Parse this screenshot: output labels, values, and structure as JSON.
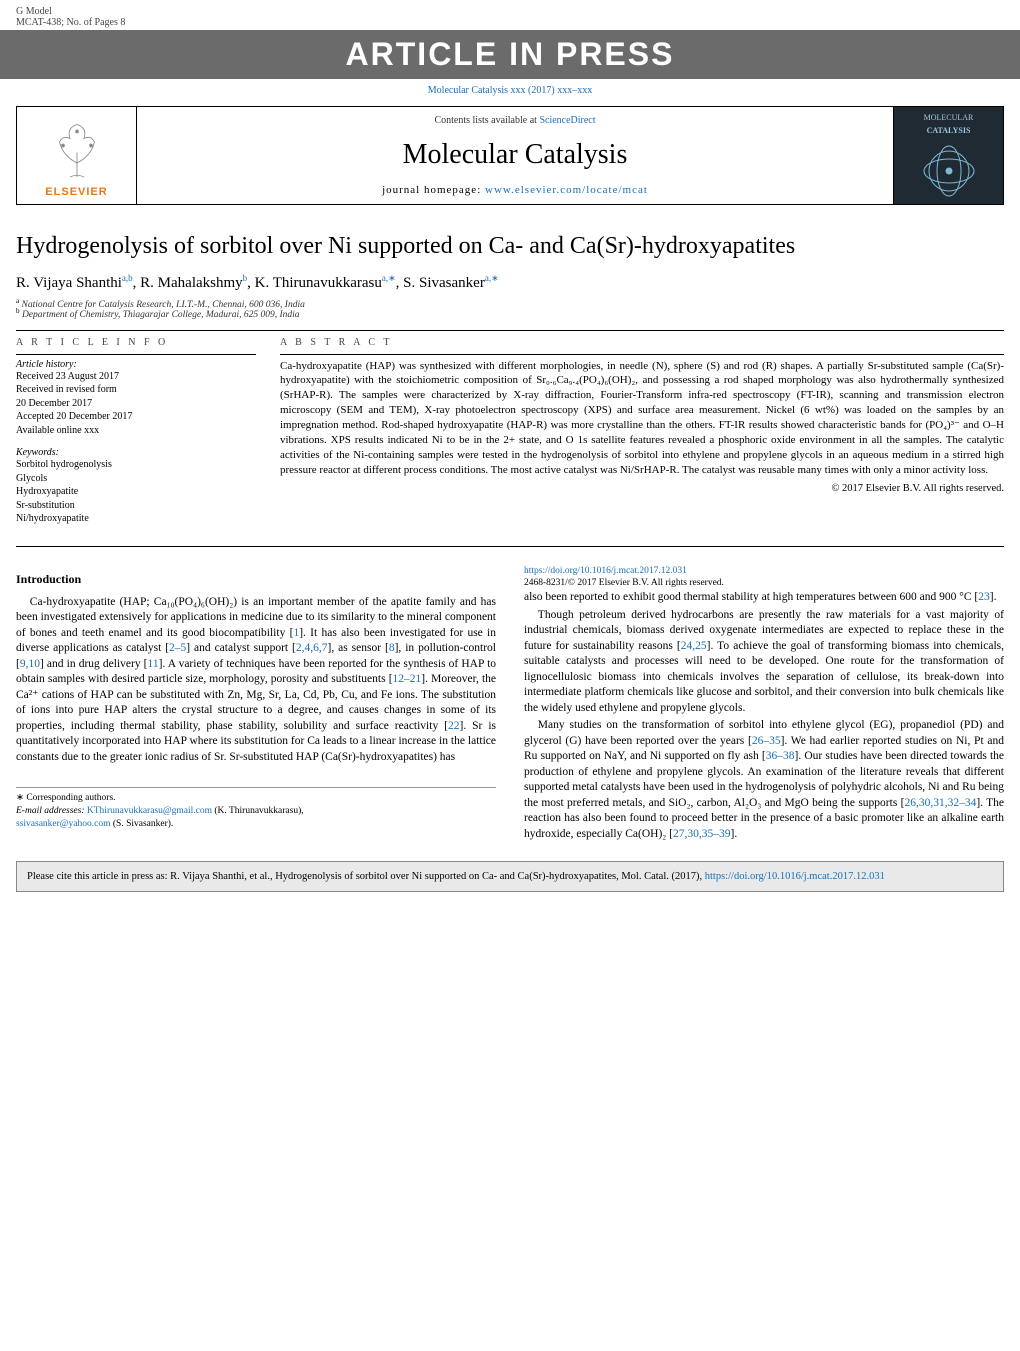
{
  "top": {
    "gmodel": "G Model",
    "mcat": "MCAT-438;   No. of Pages 8",
    "banner": "ARTICLE IN PRESS",
    "journal_ref_text": "Molecular Catalysis xxx (2017) xxx–xxx",
    "journal_ref_href": "#"
  },
  "header": {
    "elsevier_label": "ELSEVIER",
    "contents_prefix": "Contents lists available at ",
    "contents_link": "ScienceDirect",
    "journal_title": "Molecular Catalysis",
    "homepage_label": "journal homepage: ",
    "homepage_url": "www.elsevier.com/locate/mcat",
    "cover_text_top": "MOLECULAR",
    "cover_text_bottom": "CATALYSIS"
  },
  "article": {
    "title": "Hydrogenolysis of sorbitol over Ni supported on Ca- and Ca(Sr)-hydroxyapatites",
    "authors_html": "R. Vijaya Shanthi<sup>a,b</sup>, R. Mahalakshmy<sup>b</sup>, K. Thirunavukkarasu<sup>a,∗</sup>, S. Sivasanker<sup>a,∗</sup>",
    "affil_a": "National Centre for Catalysis Research, I.I.T.-M., Chennai, 600 036, India",
    "affil_b": "Department of Chemistry, Thiagarajar College, Madurai, 625 009, India"
  },
  "info": {
    "head": "A R T I C L E   I N F O",
    "history_label": "Article history:",
    "history_lines": [
      "Received 23 August 2017",
      "Received in revised form",
      "20 December 2017",
      "Accepted 20 December 2017",
      "Available online xxx"
    ],
    "keywords_label": "Keywords:",
    "keywords": [
      "Sorbitol hydrogenolysis",
      "Glycols",
      "Hydroxyapatite",
      "Sr-substitution",
      "Ni/hydroxyapatite"
    ]
  },
  "abstract": {
    "head": "A B S T R A C T",
    "text": "Ca-hydroxyapatite (HAP) was synthesized with different morphologies, in needle (N), sphere (S) and rod (R) shapes. A partially Sr-substituted sample (Ca(Sr)-hydroxyapatite) with the stoichiometric composition of Sr₀.₆Ca₉.₄(PO₄)₆(OH)₂, and possessing a rod shaped morphology was also hydrothermally synthesized (SrHAP-R). The samples were characterized by X-ray diffraction, Fourier-Transform infra-red spectroscopy (FT-IR), scanning and transmission electron microscopy (SEM and TEM), X-ray photoelectron spectroscopy (XPS) and surface area measurement. Nickel (6 wt%) was loaded on the samples by an impregnation method. Rod-shaped hydroxyapatite (HAP-R) was more crystalline than the others. FT-IR results showed characteristic bands for (PO₄)³⁻ and O–H vibrations. XPS results indicated Ni to be in the 2+ state, and O 1s satellite features revealed a phosphoric oxide environment in all the samples. The catalytic activities of the Ni-containing samples were tested in the hydrogenolysis of sorbitol into ethylene and propylene glycols in an aqueous medium in a stirred high pressure reactor at different process conditions. The most active catalyst was Ni/SrHAP-R. The catalyst was reusable many times with only a minor activity loss.",
    "copyright": "© 2017 Elsevier B.V. All rights reserved."
  },
  "body": {
    "heading": "Introduction",
    "p1": "Ca-hydroxyapatite (HAP; Ca₁₀(PO₄)₆(OH)₂) is an important member of the apatite family and has been investigated extensively for applications in medicine due to its similarity to the mineral component of bones and teeth enamel and its good biocompatibility [1]. It has also been investigated for use in diverse applications as catalyst [2–5] and catalyst support [2,4,6,7], as sensor [8], in pollution-control [9,10] and in drug delivery [11]. A variety of techniques have been reported for the synthesis of HAP to obtain samples with desired particle size, morphology, porosity and substituents [12–21]. Moreover, the Ca²⁺ cations of HAP can be substituted with Zn, Mg, Sr, La, Cd, Pb, Cu, and Fe ions. The substitution of ions into pure HAP alters the crystal structure to a degree, and causes changes in some of its properties, including thermal stability, phase stability, solubility and surface reactivity [22]. Sr is quantitatively incorporated into HAP where its substitution for Ca leads to a linear increase in the lattice constants due to the greater ionic radius of Sr. Sr-substituted HAP (Ca(Sr)-hydroxyapatites) has",
    "p2": "also been reported to exhibit good thermal stability at high temperatures between 600 and 900 °C [23].",
    "p3": "Though petroleum derived hydrocarbons are presently the raw materials for a vast majority of industrial chemicals, biomass derived oxygenate intermediates are expected to replace these in the future for sustainability reasons [24,25]. To achieve the goal of transforming biomass into chemicals, suitable catalysts and processes will need to be developed. One route for the transformation of lignocellulosic biomass into chemicals involves the separation of cellulose, its break-down into intermediate platform chemicals like glucose and sorbitol, and their conversion into bulk chemicals like the widely used ethylene and propylene glycols.",
    "p4": "Many studies on the transformation of sorbitol into ethylene glycol (EG), propanediol (PD) and glycerol (G) have been reported over the years [26–35]. We had earlier reported studies on Ni, Pt and Ru supported on NaY, and Ni supported on fly ash [36–38]. Our studies have been directed towards the production of ethylene and propylene glycols. An examination of the literature reveals that different supported metal catalysts have been used in the hydrogenolysis of polyhydric alcohols, Ni and Ru being the most preferred metals, and SiO₂, carbon, Al₂O₃ and MgO being the supports [26,30,31,32–34]. The reaction has also been found to proceed better in the presence of a basic promoter like an alkaline earth hydroxide, especially Ca(OH)₂ [27,30,35–39]."
  },
  "corresponding": {
    "star": "∗ Corresponding authors.",
    "email_label": "E-mail addresses: ",
    "email1": "KThirunavukkarasu@gmail.com",
    "email1_person": " (K. Thirunavukkarasu), ",
    "email2": "ssivasanker@yahoo.com",
    "email2_person": " (S. Sivasanker)."
  },
  "doi": {
    "url": "https://doi.org/10.1016/j.mcat.2017.12.031",
    "issn_line": "2468-8231/© 2017 Elsevier B.V. All rights reserved."
  },
  "cite": {
    "text_prefix": "Please cite this article in press as: R. Vijaya Shanthi, et al., Hydrogenolysis of sorbitol over Ni supported on Ca- and Ca(Sr)-hydroxyapatites, Mol. Catal. (2017), ",
    "url": "https://doi.org/10.1016/j.mcat.2017.12.031"
  },
  "ref_style": {
    "link_color": "#1a6fb5"
  }
}
